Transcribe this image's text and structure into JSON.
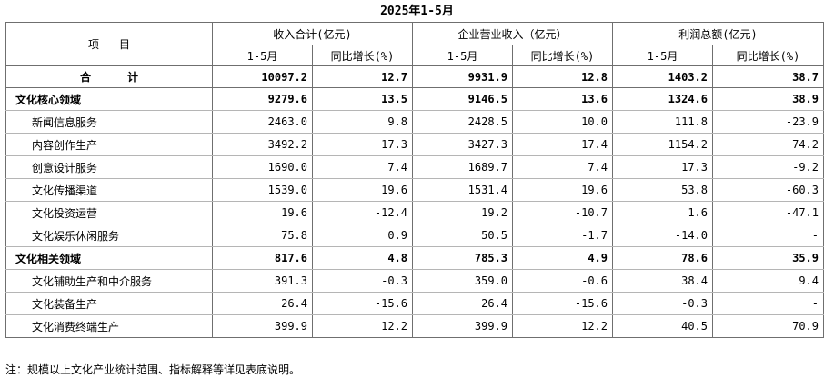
{
  "title": "2025年1-5月",
  "header": {
    "item_col_left": "项",
    "item_col_right": "目",
    "groups": [
      "收入合计(亿元)",
      "企业营业收入（亿元）",
      "利润总额(亿元)"
    ],
    "sub_period": "1-5月",
    "sub_growth": "同比增长(%)"
  },
  "total_row": {
    "label_left": "合",
    "label_right": "计",
    "values": [
      "10097.2",
      "12.7",
      "9931.9",
      "12.8",
      "1403.2",
      "38.7"
    ]
  },
  "rows": [
    {
      "label": "文化核心领域",
      "level": 1,
      "values": [
        "9279.6",
        "13.5",
        "9146.5",
        "13.6",
        "1324.6",
        "38.9"
      ]
    },
    {
      "label": "新闻信息服务",
      "level": 2,
      "values": [
        "2463.0",
        "9.8",
        "2428.5",
        "10.0",
        "111.8",
        "-23.9"
      ]
    },
    {
      "label": "内容创作生产",
      "level": 2,
      "values": [
        "3492.2",
        "17.3",
        "3427.3",
        "17.4",
        "1154.2",
        "74.2"
      ]
    },
    {
      "label": "创意设计服务",
      "level": 2,
      "values": [
        "1690.0",
        "7.4",
        "1689.7",
        "7.4",
        "17.3",
        "-9.2"
      ]
    },
    {
      "label": "文化传播渠道",
      "level": 2,
      "values": [
        "1539.0",
        "19.6",
        "1531.4",
        "19.6",
        "53.8",
        "-60.3"
      ]
    },
    {
      "label": "文化投资运营",
      "level": 2,
      "values": [
        "19.6",
        "-12.4",
        "19.2",
        "-10.7",
        "1.6",
        "-47.1"
      ]
    },
    {
      "label": "文化娱乐休闲服务",
      "level": 2,
      "values": [
        "75.8",
        "0.9",
        "50.5",
        "-1.7",
        "-14.0",
        "-"
      ]
    },
    {
      "label": "文化相关领域",
      "level": 1,
      "values": [
        "817.6",
        "4.8",
        "785.3",
        "4.9",
        "78.6",
        "35.9"
      ]
    },
    {
      "label": "文化辅助生产和中介服务",
      "level": 2,
      "values": [
        "391.3",
        "-0.3",
        "359.0",
        "-0.6",
        "38.4",
        "9.4"
      ]
    },
    {
      "label": "文化装备生产",
      "level": 2,
      "values": [
        "26.4",
        "-15.6",
        "26.4",
        "-15.6",
        "-0.3",
        "-"
      ]
    },
    {
      "label": "文化消费终端生产",
      "level": 2,
      "values": [
        "399.9",
        "12.2",
        "399.9",
        "12.2",
        "40.5",
        "70.9"
      ]
    }
  ],
  "note": "注：规模以上文化产业统计范围、指标解释等详见表底说明。"
}
